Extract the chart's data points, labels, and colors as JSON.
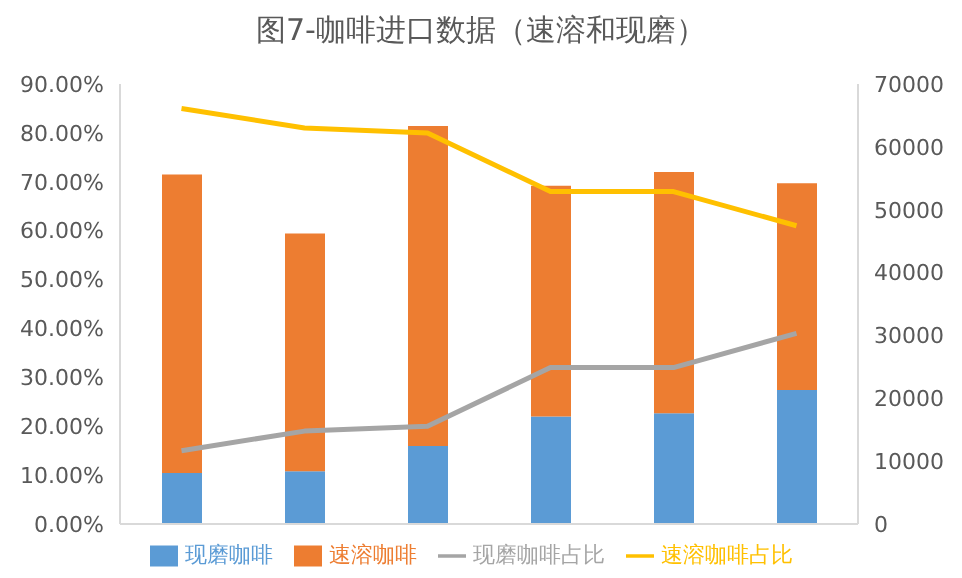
{
  "chart_data": {
    "type": "bar",
    "title": "图7-咖啡进口数据（速溶和现磨）",
    "categories": [
      null,
      null,
      null,
      null,
      null,
      null
    ],
    "stacked": true,
    "legend": "bottom",
    "grid": false,
    "marker": "none",
    "line_style": "solid",
    "series": [
      {
        "name": "现磨咖啡",
        "axis": "y2",
        "color": "#5b9bd5",
        "values": [
          8100,
          8400,
          12400,
          17100,
          17600,
          21300
        ]
      },
      {
        "name": "速溶咖啡",
        "axis": "y2",
        "color": "#ed7d31",
        "values": [
          47500,
          37800,
          50900,
          36700,
          38400,
          32900
        ]
      },
      {
        "name": "现磨咖啡占比",
        "type": "line",
        "axis": "y",
        "color": "#a5a5a5",
        "values": [
          0.15,
          0.19,
          0.2,
          0.32,
          0.32,
          0.39
        ]
      },
      {
        "name": "速溶咖啡占比",
        "type": "line",
        "axis": "y",
        "color": "#ffc000",
        "values": [
          0.85,
          0.81,
          0.8,
          0.68,
          0.68,
          0.61
        ]
      }
    ],
    "ylim": [
      0,
      0.9
    ],
    "yticks": [
      {
        "value": 0,
        "label": "0.00%"
      },
      {
        "value": 0.1,
        "label": "10.00%"
      },
      {
        "value": 0.2,
        "label": "20.00%"
      },
      {
        "value": 0.3,
        "label": "30.00%"
      },
      {
        "value": 0.4,
        "label": "40.00%"
      },
      {
        "value": 0.5,
        "label": "50.00%"
      },
      {
        "value": 0.6,
        "label": "60.00%"
      },
      {
        "value": 0.7,
        "label": "70.00%"
      },
      {
        "value": 0.8,
        "label": "80.00%"
      },
      {
        "value": 0.9,
        "label": "90.00%"
      }
    ],
    "y2lim": [
      0,
      70000
    ],
    "y2ticks": [
      0,
      10000,
      20000,
      30000,
      40000,
      50000,
      60000,
      70000
    ]
  }
}
